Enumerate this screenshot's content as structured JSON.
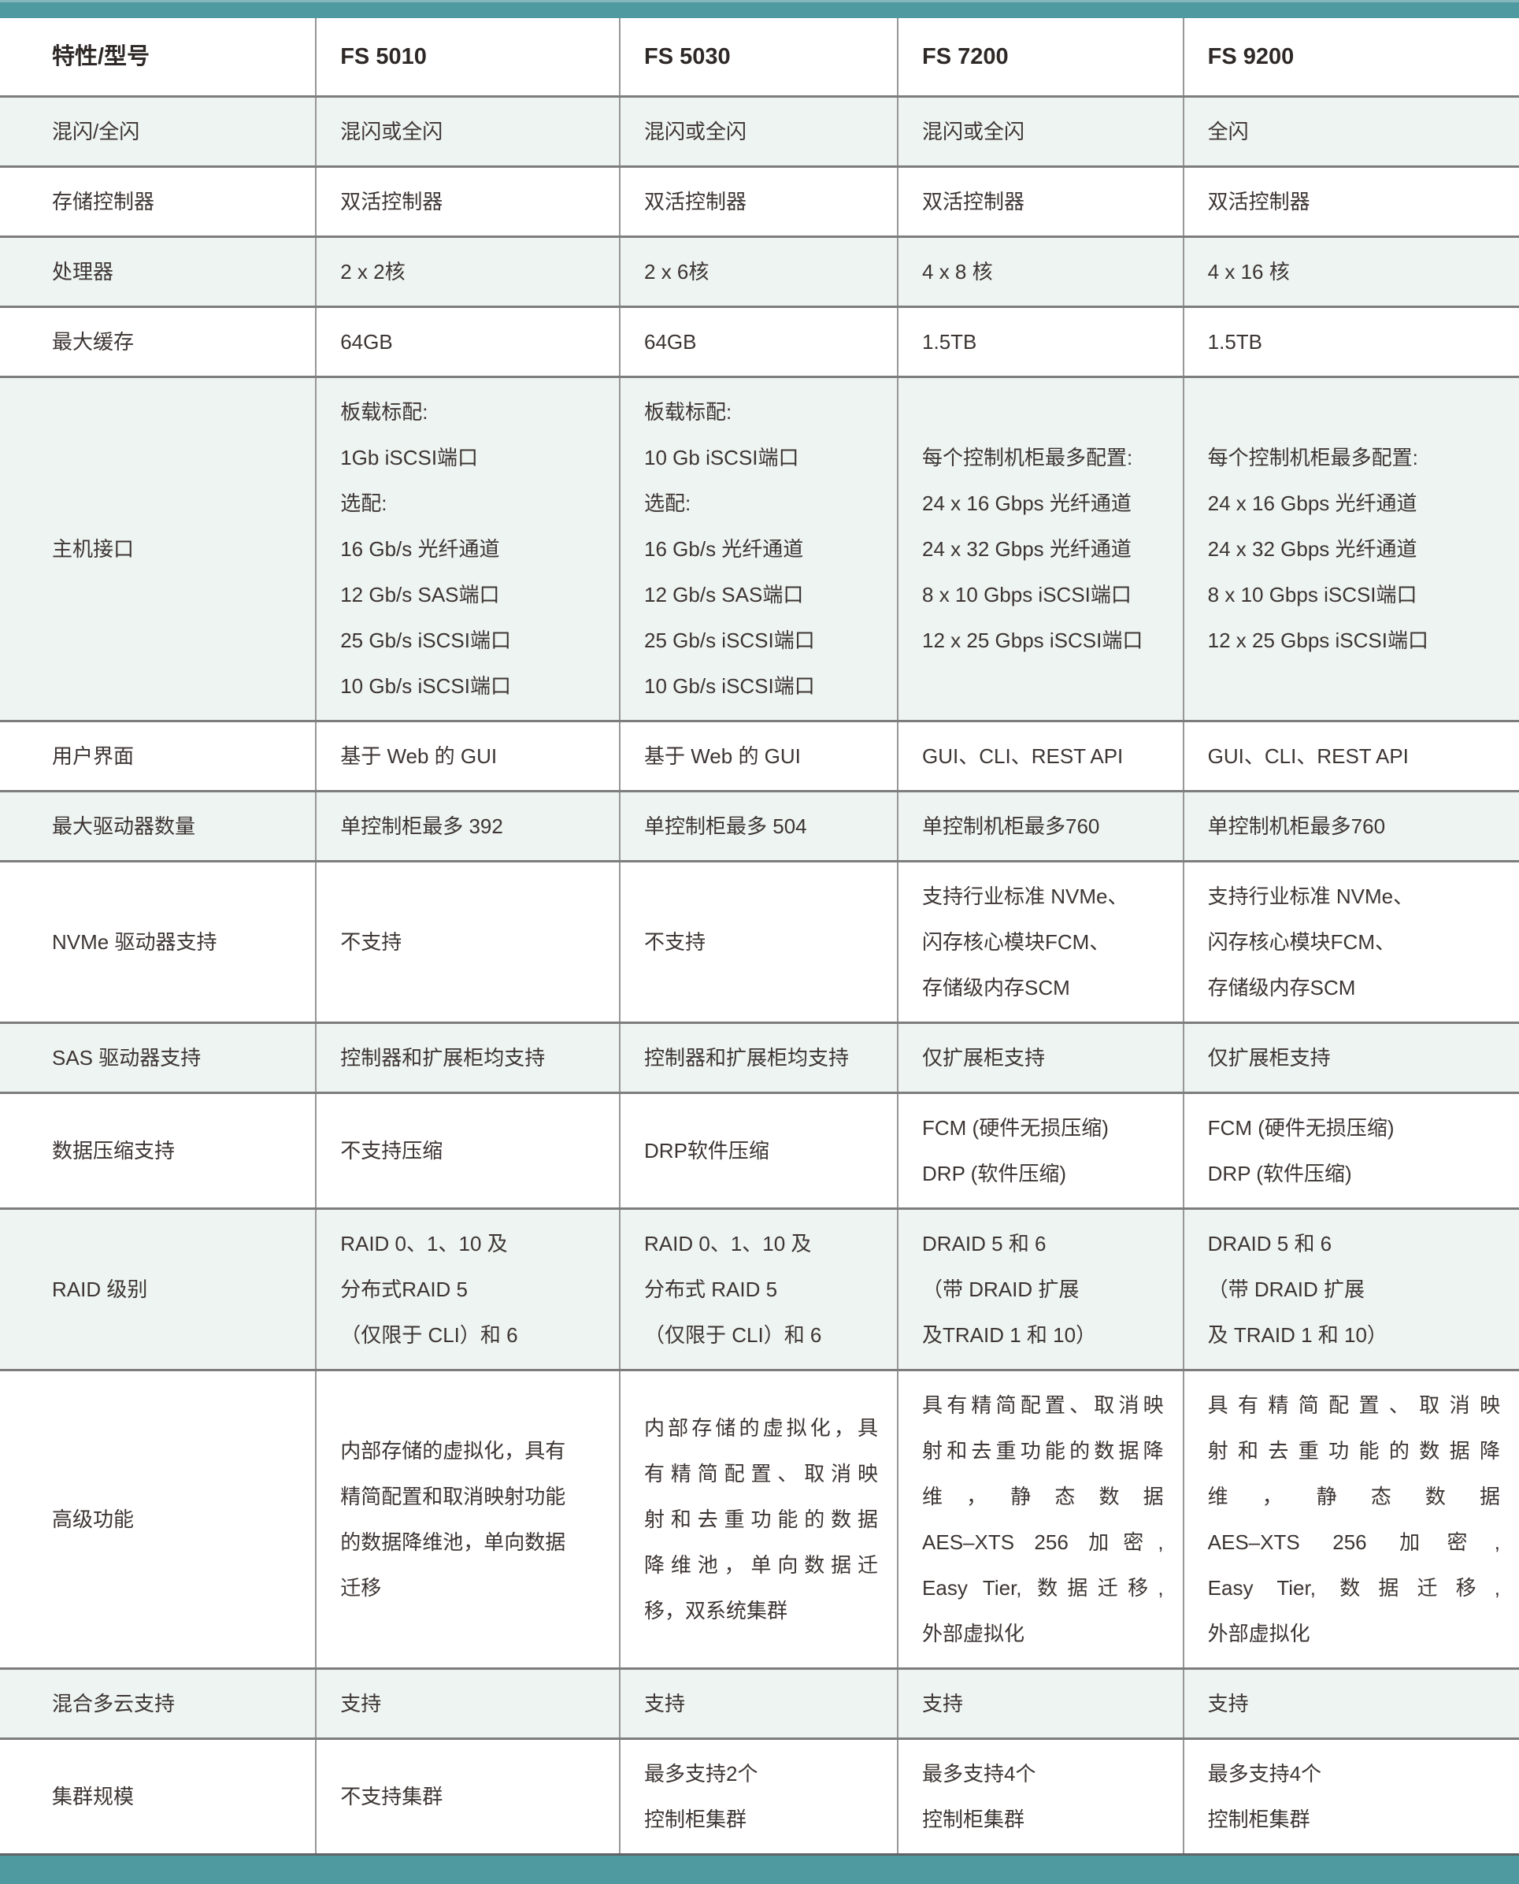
{
  "colors": {
    "accent_teal": "#4f99a1",
    "row_alt": "#eef4f2",
    "grid_horizontal": "#7d7d7d",
    "grid_vertical": "#979797",
    "text": "#3c3533"
  },
  "table": {
    "columns": [
      "特性/型号",
      "FS 5010",
      "FS 5030",
      "FS 7200",
      "FS 9200"
    ],
    "rows": [
      {
        "label": "混闪/全闪",
        "cells": [
          [
            "混闪或全闪"
          ],
          [
            "混闪或全闪"
          ],
          [
            "混闪或全闪"
          ],
          [
            "全闪"
          ]
        ]
      },
      {
        "label": "存储控制器",
        "cells": [
          [
            "双活控制器"
          ],
          [
            "双活控制器"
          ],
          [
            "双活控制器"
          ],
          [
            "双活控制器"
          ]
        ]
      },
      {
        "label": "处理器",
        "cells": [
          [
            "2 x 2核"
          ],
          [
            "2 x 6核"
          ],
          [
            "4 x 8 核"
          ],
          [
            "4 x 16 核"
          ]
        ]
      },
      {
        "label": "最大缓存",
        "cells": [
          [
            "64GB"
          ],
          [
            "64GB"
          ],
          [
            "1.5TB"
          ],
          [
            "1.5TB"
          ]
        ]
      },
      {
        "label": "主机接口",
        "cells": [
          [
            "板载标配:",
            "1Gb iSCSI端口",
            "选配:",
            "16 Gb/s 光纤通道",
            "12 Gb/s SAS端口",
            "25 Gb/s iSCSI端口",
            "10 Gb/s iSCSI端口"
          ],
          [
            "板载标配:",
            "10 Gb iSCSI端口",
            "选配:",
            "16 Gb/s 光纤通道",
            "12 Gb/s SAS端口",
            "25 Gb/s iSCSI端口",
            "10 Gb/s iSCSI端口"
          ],
          [
            "每个控制机柜最多配置:",
            "24 x 16 Gbps 光纤通道",
            "24 x 32 Gbps 光纤通道",
            "8 x 10 Gbps iSCSI端口",
            "12 x 25 Gbps iSCSI端口"
          ],
          [
            "每个控制机柜最多配置:",
            "24 x 16 Gbps 光纤通道",
            "24 x 32 Gbps 光纤通道",
            "8 x 10 Gbps iSCSI端口",
            "12 x 25 Gbps iSCSI端口"
          ]
        ]
      },
      {
        "label": "用户界面",
        "cells": [
          [
            "基于 Web 的 GUI"
          ],
          [
            "基于 Web 的 GUI"
          ],
          [
            "GUI、CLI、REST API"
          ],
          [
            "GUI、CLI、REST API"
          ]
        ]
      },
      {
        "label": "最大驱动器数量",
        "cells": [
          [
            "单控制柜最多 392"
          ],
          [
            "单控制柜最多 504"
          ],
          [
            "单控制机柜最多760"
          ],
          [
            "单控制机柜最多760"
          ]
        ]
      },
      {
        "label": "NVMe 驱动器支持",
        "cells": [
          [
            "不支持"
          ],
          [
            "不支持"
          ],
          [
            "支持行业标准 NVMe、",
            "闪存核心模块FCM、",
            "存储级内存SCM"
          ],
          [
            "支持行业标准 NVMe、",
            "闪存核心模块FCM、",
            "存储级内存SCM"
          ]
        ]
      },
      {
        "label": "SAS 驱动器支持",
        "cells": [
          [
            "控制器和扩展柜均支持"
          ],
          [
            "控制器和扩展柜均支持"
          ],
          [
            "仅扩展柜支持"
          ],
          [
            "仅扩展柜支持"
          ]
        ]
      },
      {
        "label": "数据压缩支持",
        "cells": [
          [
            "不支持压缩"
          ],
          [
            "DRP软件压缩"
          ],
          [
            "FCM (硬件无损压缩)",
            "DRP (软件压缩)"
          ],
          [
            "FCM (硬件无损压缩)",
            "DRP (软件压缩)"
          ]
        ]
      },
      {
        "label": "RAID 级别",
        "cells": [
          [
            "RAID 0、1、10 及",
            "分布式RAID 5",
            "（仅限于 CLI）和 6"
          ],
          [
            "RAID 0、1、10 及",
            "分布式 RAID 5",
            "（仅限于 CLI）和 6"
          ],
          [
            "DRAID 5 和 6",
            "（带 DRAID 扩展",
            "及TRAID 1 和 10）"
          ],
          [
            "DRAID 5 和 6",
            "（带 DRAID 扩展",
            "及 TRAID 1 和 10）"
          ]
        ]
      },
      {
        "label": "高级功能",
        "justify": [
          false,
          true,
          true,
          true
        ],
        "cells": [
          [
            "内部存储的虚拟化，具有",
            "精简配置和取消映射功能",
            "的数据降维池，单向数据",
            "迁移"
          ],
          [
            "内部存储的虚拟化，具",
            "有精简配置、取消映",
            "射和去重功能的数据",
            "降维池，单向数据迁",
            "移，双系统集群"
          ],
          [
            "具有精简配置、取消映",
            "射和去重功能的数据降",
            "维，静态数据",
            "AES–XTS 256 加密,",
            "Easy Tier, 数据迁移,",
            "外部虚拟化"
          ],
          [
            "具有精简配置、取消映",
            "射和去重功能的数据降",
            "维，静态数据",
            "AES–XTS 256 加密,",
            "Easy Tier, 数据迁移,",
            "外部虚拟化"
          ]
        ]
      },
      {
        "label": "混合多云支持",
        "cells": [
          [
            "支持"
          ],
          [
            "支持"
          ],
          [
            "支持"
          ],
          [
            "支持"
          ]
        ]
      },
      {
        "label": "集群规模",
        "cells": [
          [
            "不支持集群"
          ],
          [
            "最多支持2个",
            "控制柜集群"
          ],
          [
            "最多支持4个",
            "控制柜集群"
          ],
          [
            "最多支持4个",
            "控制柜集群"
          ]
        ]
      }
    ]
  }
}
